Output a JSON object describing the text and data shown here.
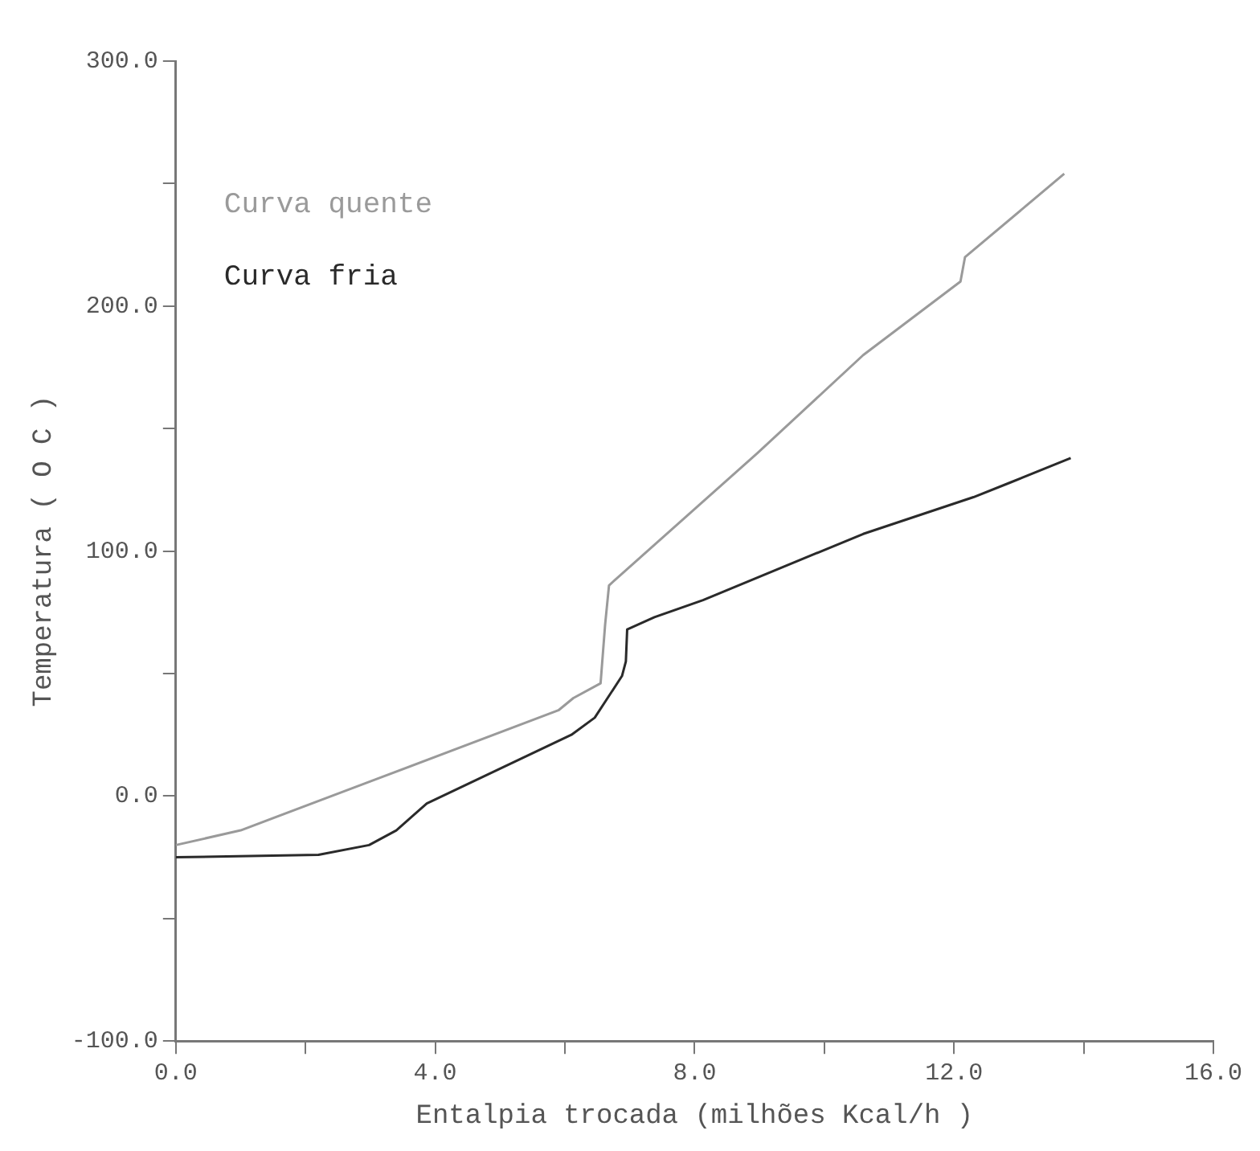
{
  "chart_data": {
    "type": "line",
    "xlabel": "Entalpia trocada (milhões Kcal/h )",
    "ylabel": "Temperatura ( O C )",
    "xlim": [
      0,
      16
    ],
    "xticks": [
      {
        "value": 0,
        "label": "0.0"
      },
      {
        "value": 2,
        "label": null
      },
      {
        "value": 4,
        "label": "4.0"
      },
      {
        "value": 6,
        "label": null
      },
      {
        "value": 8,
        "label": "8.0"
      },
      {
        "value": 10,
        "label": null
      },
      {
        "value": 12,
        "label": "12.0"
      },
      {
        "value": 14,
        "label": null
      },
      {
        "value": 16,
        "label": "16.0"
      }
    ],
    "ylim": [
      -100,
      300
    ],
    "yticks": [
      {
        "value": -100,
        "label": "-100.0"
      },
      {
        "value": -50,
        "label": null
      },
      {
        "value": 0,
        "label": "0.0"
      },
      {
        "value": 50,
        "label": null
      },
      {
        "value": 100,
        "label": "100.0"
      },
      {
        "value": 150,
        "label": null
      },
      {
        "value": 200,
        "label": "200.0"
      },
      {
        "value": 250,
        "label": null
      },
      {
        "value": 300,
        "label": "300.0"
      }
    ],
    "grid": false,
    "legend": "top left",
    "marker": "none",
    "line_style": "solid",
    "series": [
      {
        "name": "Curva quente",
        "color": "#9a9a9a",
        "x": [
          0,
          1,
          3,
          5.9,
          6.13,
          6.55,
          6.62,
          6.68,
          8.97,
          10.6,
          12.1,
          12.17,
          13.7
        ],
        "values": [
          -20,
          -14,
          6,
          35,
          40,
          46,
          70,
          86,
          140,
          180,
          210,
          220,
          254
        ]
      },
      {
        "name": "Curva fria",
        "color": "#2a2a2a",
        "x": [
          0,
          2.2,
          2.98,
          3.4,
          3.87,
          6.1,
          6.46,
          6.88,
          6.94,
          6.96,
          7.38,
          8.13,
          10.6,
          12.3,
          12.87,
          13.8
        ],
        "values": [
          -25,
          -24,
          -20,
          -14,
          -3,
          25,
          32,
          49,
          55,
          68,
          73,
          80,
          107,
          122,
          128,
          138
        ]
      }
    ]
  }
}
